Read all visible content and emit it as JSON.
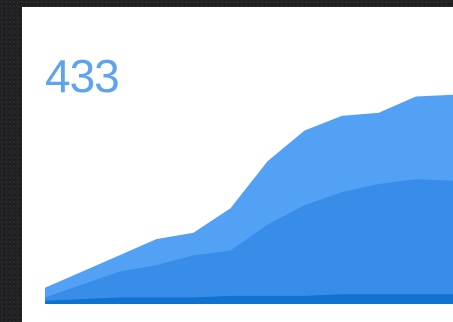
{
  "widget": {
    "caption": "",
    "value": "433"
  },
  "colors": {
    "card_background": "#ffffff",
    "value_text": "#5ea3ef",
    "series_top": "#52a1f5",
    "series_middle": "#378de8",
    "series_bottom": "#1072cf"
  },
  "chart_data": {
    "type": "area",
    "stacked": true,
    "x": [
      0,
      1,
      2,
      3,
      4,
      5,
      6,
      7,
      8,
      9,
      10,
      11
    ],
    "series": [
      {
        "color": "#1072cf",
        "values": [
          2,
          3,
          4,
          4,
          4,
          5,
          5,
          5,
          6,
          6,
          6,
          6
        ]
      },
      {
        "color": "#378de8",
        "values": [
          2,
          9,
          16,
          20,
          26,
          28,
          44,
          56,
          63,
          68,
          71,
          70
        ]
      },
      {
        "color": "#52a1f5",
        "values": [
          6,
          8,
          10,
          16,
          14,
          26,
          39,
          46,
          47,
          44,
          51,
          53
        ]
      }
    ],
    "ylim": [
      0,
      140
    ],
    "grid": false,
    "legend": "none",
    "axes_visible": false
  }
}
